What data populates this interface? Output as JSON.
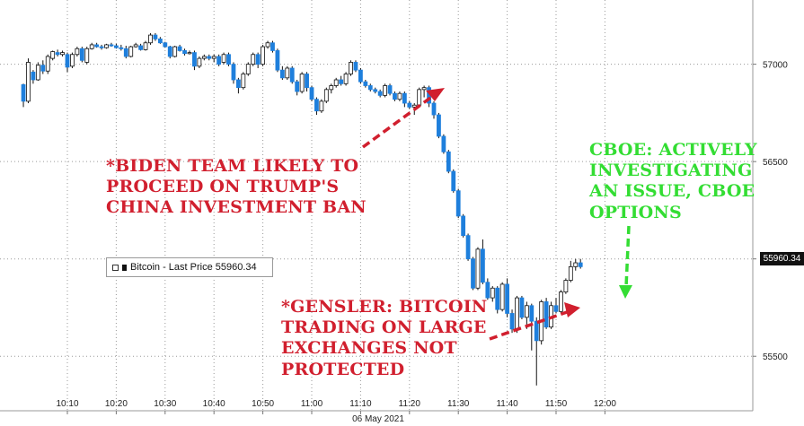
{
  "chart_data": {
    "type": "candlestick",
    "date_label": "06 May 2021",
    "x_ticks": [
      "10:10",
      "10:20",
      "10:30",
      "10:40",
      "10:50",
      "11:00",
      "11:10",
      "11:20",
      "11:30",
      "11:40",
      "11:50",
      "12:00"
    ],
    "y_ticks": [
      "57000",
      "56500",
      "56000",
      "55500"
    ],
    "ylim": [
      55220,
      57330
    ],
    "legend": "Bitcoin - Last Price 55960.34",
    "last_price_label": "55960.34",
    "grid": true,
    "colors": {
      "up": "#ffffff",
      "down": "#1e7fdc",
      "annotation_red": "#d11f2e",
      "annotation_green": "#33dd33"
    },
    "candles": [
      {
        "t": "10:01",
        "o": 56895,
        "h": 56900,
        "l": 56780,
        "c": 56810
      },
      {
        "t": "10:02",
        "o": 56810,
        "h": 57030,
        "l": 56800,
        "c": 57010
      },
      {
        "t": "10:03",
        "o": 56960,
        "h": 56970,
        "l": 56900,
        "c": 56920
      },
      {
        "t": "10:04",
        "o": 56920,
        "h": 57010,
        "l": 56915,
        "c": 56995
      },
      {
        "t": "10:05",
        "o": 56995,
        "h": 57020,
        "l": 56950,
        "c": 56965
      },
      {
        "t": "10:06",
        "o": 56965,
        "h": 57050,
        "l": 56950,
        "c": 57040
      },
      {
        "t": "10:07",
        "o": 57030,
        "h": 57070,
        "l": 57020,
        "c": 57065
      },
      {
        "t": "10:08",
        "o": 57060,
        "h": 57075,
        "l": 57040,
        "c": 57050
      },
      {
        "t": "10:09",
        "o": 57050,
        "h": 57070,
        "l": 57040,
        "c": 57060
      },
      {
        "t": "10:10",
        "o": 57050,
        "h": 57060,
        "l": 56960,
        "c": 56985
      },
      {
        "t": "10:11",
        "o": 56990,
        "h": 57060,
        "l": 56980,
        "c": 57050
      },
      {
        "t": "10:12",
        "o": 57050,
        "h": 57090,
        "l": 57040,
        "c": 57080
      },
      {
        "t": "10:13",
        "o": 57080,
        "h": 57090,
        "l": 57010,
        "c": 57020
      },
      {
        "t": "10:14",
        "o": 57010,
        "h": 57090,
        "l": 57000,
        "c": 57080
      },
      {
        "t": "10:15",
        "o": 57080,
        "h": 57110,
        "l": 57075,
        "c": 57100
      },
      {
        "t": "10:16",
        "o": 57100,
        "h": 57110,
        "l": 57085,
        "c": 57090
      },
      {
        "t": "10:17",
        "o": 57090,
        "h": 57100,
        "l": 57075,
        "c": 57085
      },
      {
        "t": "10:18",
        "o": 57085,
        "h": 57105,
        "l": 57080,
        "c": 57100
      },
      {
        "t": "10:19",
        "o": 57100,
        "h": 57110,
        "l": 57090,
        "c": 57095
      },
      {
        "t": "10:20",
        "o": 57095,
        "h": 57105,
        "l": 57080,
        "c": 57085
      },
      {
        "t": "10:21",
        "o": 57085,
        "h": 57100,
        "l": 57070,
        "c": 57080
      },
      {
        "t": "10:22",
        "o": 57080,
        "h": 57095,
        "l": 57030,
        "c": 57040
      },
      {
        "t": "10:23",
        "o": 57040,
        "h": 57095,
        "l": 57035,
        "c": 57090
      },
      {
        "t": "10:24",
        "o": 57090,
        "h": 57110,
        "l": 57085,
        "c": 57100
      },
      {
        "t": "10:25",
        "o": 57095,
        "h": 57105,
        "l": 57070,
        "c": 57075
      },
      {
        "t": "10:26",
        "o": 57075,
        "h": 57120,
        "l": 57070,
        "c": 57110
      },
      {
        "t": "10:27",
        "o": 57110,
        "h": 57160,
        "l": 57100,
        "c": 57150
      },
      {
        "t": "10:28",
        "o": 57150,
        "h": 57160,
        "l": 57120,
        "c": 57130
      },
      {
        "t": "10:29",
        "o": 57130,
        "h": 57140,
        "l": 57105,
        "c": 57110
      },
      {
        "t": "10:30",
        "o": 57110,
        "h": 57115,
        "l": 57085,
        "c": 57090
      },
      {
        "t": "10:31",
        "o": 57090,
        "h": 57095,
        "l": 57030,
        "c": 57040
      },
      {
        "t": "10:32",
        "o": 57040,
        "h": 57095,
        "l": 57035,
        "c": 57090
      },
      {
        "t": "10:33",
        "o": 57090,
        "h": 57100,
        "l": 57065,
        "c": 57070
      },
      {
        "t": "10:34",
        "o": 57070,
        "h": 57080,
        "l": 57045,
        "c": 57055
      },
      {
        "t": "10:35",
        "o": 57055,
        "h": 57070,
        "l": 57050,
        "c": 57060
      },
      {
        "t": "10:36",
        "o": 57060,
        "h": 57070,
        "l": 56970,
        "c": 56990
      },
      {
        "t": "10:37",
        "o": 56990,
        "h": 57040,
        "l": 56980,
        "c": 57030
      },
      {
        "t": "10:38",
        "o": 57030,
        "h": 57050,
        "l": 57020,
        "c": 57040
      },
      {
        "t": "10:39",
        "o": 57040,
        "h": 57050,
        "l": 57020,
        "c": 57030
      },
      {
        "t": "10:40",
        "o": 57030,
        "h": 57050,
        "l": 57010,
        "c": 57040
      },
      {
        "t": "10:41",
        "o": 57040,
        "h": 57050,
        "l": 56990,
        "c": 57000
      },
      {
        "t": "10:42",
        "o": 57010,
        "h": 57060,
        "l": 57000,
        "c": 57050
      },
      {
        "t": "10:43",
        "o": 57050,
        "h": 57060,
        "l": 56990,
        "c": 57000
      },
      {
        "t": "10:44",
        "o": 57000,
        "h": 57010,
        "l": 56900,
        "c": 56920
      },
      {
        "t": "10:45",
        "o": 56920,
        "h": 56930,
        "l": 56850,
        "c": 56880
      },
      {
        "t": "10:46",
        "o": 56880,
        "h": 56960,
        "l": 56870,
        "c": 56950
      },
      {
        "t": "10:47",
        "o": 56950,
        "h": 57010,
        "l": 56940,
        "c": 57000
      },
      {
        "t": "10:48",
        "o": 57000,
        "h": 57060,
        "l": 56990,
        "c": 57050
      },
      {
        "t": "10:49",
        "o": 57050,
        "h": 57060,
        "l": 56980,
        "c": 57000
      },
      {
        "t": "10:50",
        "o": 57000,
        "h": 57100,
        "l": 56990,
        "c": 57090
      },
      {
        "t": "10:51",
        "o": 57090,
        "h": 57120,
        "l": 57080,
        "c": 57110
      },
      {
        "t": "10:52",
        "o": 57110,
        "h": 57120,
        "l": 57060,
        "c": 57070
      },
      {
        "t": "10:53",
        "o": 57070,
        "h": 57080,
        "l": 56960,
        "c": 56970
      },
      {
        "t": "10:54",
        "o": 56970,
        "h": 56990,
        "l": 56920,
        "c": 56930
      },
      {
        "t": "10:55",
        "o": 56930,
        "h": 56990,
        "l": 56920,
        "c": 56980
      },
      {
        "t": "10:56",
        "o": 56980,
        "h": 56990,
        "l": 56900,
        "c": 56910
      },
      {
        "t": "10:57",
        "o": 56910,
        "h": 56920,
        "l": 56840,
        "c": 56860
      },
      {
        "t": "10:58",
        "o": 56860,
        "h": 56960,
        "l": 56850,
        "c": 56950
      },
      {
        "t": "10:59",
        "o": 56950,
        "h": 56960,
        "l": 56860,
        "c": 56880
      },
      {
        "t": "11:00",
        "o": 56880,
        "h": 56890,
        "l": 56810,
        "c": 56820
      },
      {
        "t": "11:01",
        "o": 56820,
        "h": 56830,
        "l": 56740,
        "c": 56760
      },
      {
        "t": "11:02",
        "o": 56760,
        "h": 56820,
        "l": 56750,
        "c": 56810
      },
      {
        "t": "11:03",
        "o": 56810,
        "h": 56880,
        "l": 56800,
        "c": 56870
      },
      {
        "t": "11:04",
        "o": 56870,
        "h": 56900,
        "l": 56850,
        "c": 56890
      },
      {
        "t": "11:05",
        "o": 56890,
        "h": 56930,
        "l": 56880,
        "c": 56920
      },
      {
        "t": "11:06",
        "o": 56920,
        "h": 56940,
        "l": 56890,
        "c": 56900
      },
      {
        "t": "11:07",
        "o": 56900,
        "h": 56960,
        "l": 56890,
        "c": 56950
      },
      {
        "t": "11:08",
        "o": 56950,
        "h": 57020,
        "l": 56940,
        "c": 57010
      },
      {
        "t": "11:09",
        "o": 57010,
        "h": 57020,
        "l": 56960,
        "c": 56970
      },
      {
        "t": "11:10",
        "o": 56970,
        "h": 56980,
        "l": 56900,
        "c": 56910
      },
      {
        "t": "11:11",
        "o": 56910,
        "h": 56920,
        "l": 56880,
        "c": 56890
      },
      {
        "t": "11:12",
        "o": 56890,
        "h": 56900,
        "l": 56860,
        "c": 56870
      },
      {
        "t": "11:13",
        "o": 56870,
        "h": 56880,
        "l": 56850,
        "c": 56860
      },
      {
        "t": "11:14",
        "o": 56860,
        "h": 56870,
        "l": 56830,
        "c": 56840
      },
      {
        "t": "11:15",
        "o": 56840,
        "h": 56900,
        "l": 56830,
        "c": 56890
      },
      {
        "t": "11:16",
        "o": 56890,
        "h": 56900,
        "l": 56840,
        "c": 56850
      },
      {
        "t": "11:17",
        "o": 56850,
        "h": 56860,
        "l": 56810,
        "c": 56820
      },
      {
        "t": "11:18",
        "o": 56820,
        "h": 56860,
        "l": 56810,
        "c": 56850
      },
      {
        "t": "11:19",
        "o": 56850,
        "h": 56860,
        "l": 56780,
        "c": 56800
      },
      {
        "t": "11:20",
        "o": 56800,
        "h": 56810,
        "l": 56770,
        "c": 56780
      },
      {
        "t": "11:21",
        "o": 56780,
        "h": 56800,
        "l": 56740,
        "c": 56790
      },
      {
        "t": "11:22",
        "o": 56790,
        "h": 56880,
        "l": 56780,
        "c": 56870
      },
      {
        "t": "11:23",
        "o": 56870,
        "h": 56890,
        "l": 56830,
        "c": 56880
      },
      {
        "t": "11:24",
        "o": 56880,
        "h": 56890,
        "l": 56780,
        "c": 56800
      },
      {
        "t": "11:25",
        "o": 56800,
        "h": 56810,
        "l": 56720,
        "c": 56740
      },
      {
        "t": "11:26",
        "o": 56740,
        "h": 56750,
        "l": 56620,
        "c": 56630
      },
      {
        "t": "11:27",
        "o": 56630,
        "h": 56640,
        "l": 56540,
        "c": 56550
      },
      {
        "t": "11:28",
        "o": 56550,
        "h": 56560,
        "l": 56440,
        "c": 56450
      },
      {
        "t": "11:29",
        "o": 56450,
        "h": 56460,
        "l": 56340,
        "c": 56350
      },
      {
        "t": "11:30",
        "o": 56350,
        "h": 56360,
        "l": 56210,
        "c": 56220
      },
      {
        "t": "11:31",
        "o": 56220,
        "h": 56230,
        "l": 56110,
        "c": 56120
      },
      {
        "t": "11:32",
        "o": 56120,
        "h": 56130,
        "l": 55990,
        "c": 56000
      },
      {
        "t": "11:33",
        "o": 56000,
        "h": 56010,
        "l": 55840,
        "c": 55850
      },
      {
        "t": "11:34",
        "o": 55850,
        "h": 56060,
        "l": 55840,
        "c": 56050
      },
      {
        "t": "11:35",
        "o": 56050,
        "h": 56100,
        "l": 55870,
        "c": 55880
      },
      {
        "t": "11:36",
        "o": 55880,
        "h": 55900,
        "l": 55790,
        "c": 55800
      },
      {
        "t": "11:37",
        "o": 55800,
        "h": 55860,
        "l": 55780,
        "c": 55850
      },
      {
        "t": "11:38",
        "o": 55850,
        "h": 55860,
        "l": 55720,
        "c": 55740
      },
      {
        "t": "11:39",
        "o": 55740,
        "h": 55880,
        "l": 55730,
        "c": 55870
      },
      {
        "t": "11:40",
        "o": 55870,
        "h": 55900,
        "l": 55700,
        "c": 55720
      },
      {
        "t": "11:41",
        "o": 55720,
        "h": 55740,
        "l": 55620,
        "c": 55640
      },
      {
        "t": "11:42",
        "o": 55640,
        "h": 55810,
        "l": 55620,
        "c": 55800
      },
      {
        "t": "11:43",
        "o": 55800,
        "h": 55810,
        "l": 55690,
        "c": 55700
      },
      {
        "t": "11:44",
        "o": 55700,
        "h": 55780,
        "l": 55640,
        "c": 55760
      },
      {
        "t": "11:45",
        "o": 55760,
        "h": 55770,
        "l": 55530,
        "c": 55680
      },
      {
        "t": "11:46",
        "o": 55680,
        "h": 55700,
        "l": 55350,
        "c": 55580
      },
      {
        "t": "11:47",
        "o": 55580,
        "h": 55790,
        "l": 55560,
        "c": 55780
      },
      {
        "t": "11:48",
        "o": 55780,
        "h": 55800,
        "l": 55640,
        "c": 55650
      },
      {
        "t": "11:49",
        "o": 55650,
        "h": 55780,
        "l": 55640,
        "c": 55760
      },
      {
        "t": "11:50",
        "o": 55760,
        "h": 55800,
        "l": 55720,
        "c": 55730
      },
      {
        "t": "11:51",
        "o": 55730,
        "h": 55840,
        "l": 55720,
        "c": 55830
      },
      {
        "t": "11:52",
        "o": 55830,
        "h": 55900,
        "l": 55820,
        "c": 55890
      },
      {
        "t": "11:53",
        "o": 55890,
        "h": 55990,
        "l": 55880,
        "c": 55960
      },
      {
        "t": "11:54",
        "o": 55960,
        "h": 56000,
        "l": 55940,
        "c": 55980
      },
      {
        "t": "11:55",
        "o": 55980,
        "h": 56000,
        "l": 55950,
        "c": 55960
      }
    ]
  },
  "annotations": {
    "biden": [
      "*BIDEN TEAM LIKELY TO",
      "PROCEED ON TRUMP'S",
      "CHINA INVESTMENT BAN"
    ],
    "gensler": [
      "*GENSLER: BITCOIN",
      "TRADING ON LARGE",
      "EXCHANGES NOT",
      "PROTECTED"
    ],
    "cboe": [
      "CBOE: ACTIVELY",
      "INVESTIGATING",
      "AN ISSUE, CBOE",
      "OPTIONS"
    ]
  }
}
